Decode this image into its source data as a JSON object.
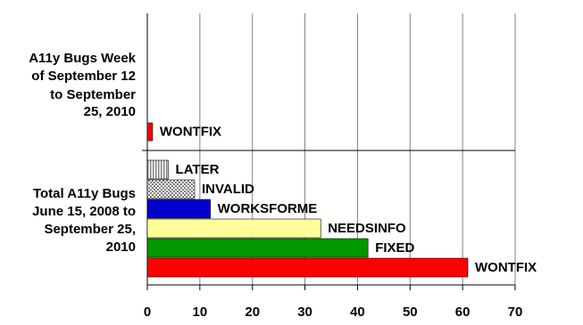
{
  "chart_data": {
    "type": "bar",
    "orientation": "horizontal",
    "groups": [
      {
        "label_lines": [
          "A11y Bugs Week",
          "of September 12",
          "to September",
          "25, 2010"
        ],
        "bars": [
          {
            "name": "WONTFIX",
            "value": 1,
            "color": "#ff0000"
          }
        ]
      },
      {
        "label_lines": [
          "Total A11y Bugs",
          "June 15, 2008 to",
          "September 25,",
          "2010"
        ],
        "bars": [
          {
            "name": "LATER",
            "value": 4,
            "color": "#808080",
            "pattern": "vertical-stripes"
          },
          {
            "name": "INVALID",
            "value": 9,
            "color": "#808080",
            "pattern": "checker"
          },
          {
            "name": "WORKSFORME",
            "value": 12,
            "color": "#0000cc"
          },
          {
            "name": "NEEDSINFO",
            "value": 33,
            "color": "#ffff99"
          },
          {
            "name": "FIXED",
            "value": 42,
            "color": "#009900"
          },
          {
            "name": "WONTFIX",
            "value": 61,
            "color": "#ff0000"
          }
        ]
      }
    ],
    "xlim": [
      0,
      70
    ],
    "xticks": [
      0,
      10,
      20,
      30,
      40,
      50,
      60,
      70
    ],
    "grid": true
  }
}
